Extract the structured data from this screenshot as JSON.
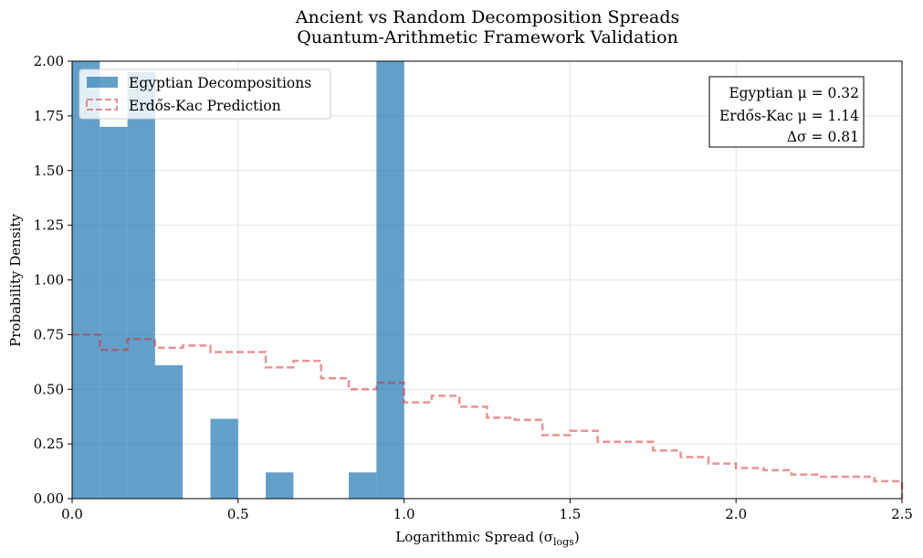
{
  "chart_data": {
    "type": "bar",
    "title": "Ancient vs Random Decomposition Spreads",
    "subtitle": "Quantum-Arithmetic Framework Validation",
    "xlabel": "Logarithmic Spread (σlogs)",
    "ylabel": "Probability Density",
    "xlim": [
      0,
      2.5
    ],
    "ylim": [
      0,
      2.0
    ],
    "x_ticks": [
      "0.0",
      "0.5",
      "1.0",
      "1.5",
      "2.0",
      "2.5"
    ],
    "y_ticks": [
      "0.00",
      "0.25",
      "0.50",
      "0.75",
      "1.00",
      "1.25",
      "1.50",
      "1.75",
      "2.00"
    ],
    "grid": true,
    "legend_position": "top-left",
    "colors": {
      "egyptian": "#1f77b4",
      "erdos": "#d62728"
    },
    "series": [
      {
        "name": "Egyptian Decompositions",
        "style": "filled histogram",
        "bin_edges": [
          0.0,
          0.0833,
          0.1667,
          0.25,
          0.3333,
          0.4167,
          0.5,
          0.5833,
          0.6667,
          0.75,
          0.8333,
          0.9167,
          1.0
        ],
        "values": [
          2.0,
          1.7,
          1.95,
          0.61,
          0.0,
          0.365,
          0.0,
          0.12,
          0.0,
          0.0,
          0.12,
          2.0
        ]
      },
      {
        "name": "Erdős-Kac Prediction",
        "style": "dashed step histogram",
        "bin_edges": [
          0.0,
          0.0833,
          0.1667,
          0.25,
          0.3333,
          0.4167,
          0.5,
          0.5833,
          0.6667,
          0.75,
          0.8333,
          0.9167,
          1.0,
          1.0833,
          1.1667,
          1.25,
          1.3333,
          1.4167,
          1.5,
          1.5833,
          1.6667,
          1.75,
          1.8333,
          1.9167,
          2.0,
          2.0833,
          2.1667,
          2.25,
          2.3333,
          2.4167,
          2.5
        ],
        "values": [
          0.75,
          0.68,
          0.73,
          0.69,
          0.7,
          0.67,
          0.67,
          0.6,
          0.63,
          0.55,
          0.5,
          0.53,
          0.44,
          0.47,
          0.42,
          0.37,
          0.36,
          0.29,
          0.31,
          0.26,
          0.26,
          0.22,
          0.19,
          0.16,
          0.14,
          0.13,
          0.11,
          0.1,
          0.1,
          0.08
        ]
      }
    ],
    "stats_box": {
      "lines": [
        "Egyptian μ = 0.32",
        "Erdős-Kac μ = 1.14",
        "Δσ = 0.81"
      ]
    }
  }
}
